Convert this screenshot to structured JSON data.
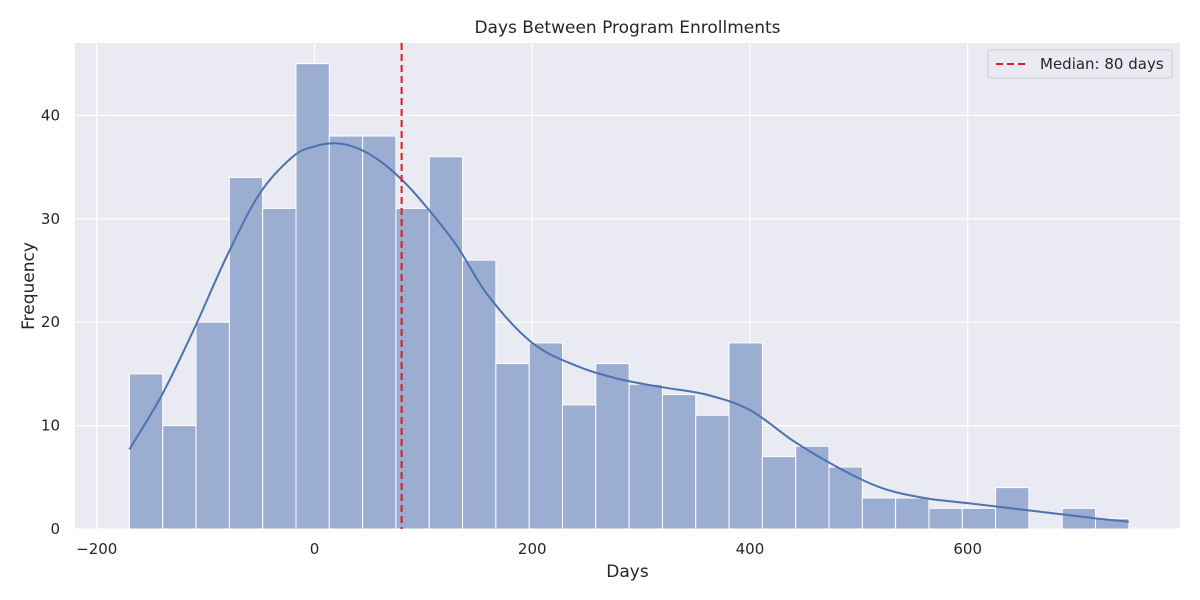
{
  "chart_data": {
    "type": "bar",
    "subtype": "histogram-with-kde",
    "title": "Days Between Program Enrollments",
    "xlabel": "Days",
    "ylabel": "Frequency",
    "xlim": [
      -220,
      795
    ],
    "ylim": [
      0,
      47
    ],
    "xticks": [
      -200,
      0,
      200,
      400,
      600
    ],
    "yticks": [
      0,
      10,
      20,
      30,
      40
    ],
    "grid": true,
    "colors": {
      "background": "#eaeaf2",
      "grid": "#ffffff",
      "bar": "#9badd0",
      "bar_edge": "#ffffff",
      "kde": "#4c72b0",
      "median": "#e41a1c"
    },
    "bin_start": -170,
    "bin_width": 30.6,
    "bins": [
      {
        "left": -170,
        "right": -139.4,
        "count": 15
      },
      {
        "left": -139.4,
        "right": -108.8,
        "count": 10
      },
      {
        "left": -108.8,
        "right": -78.2,
        "count": 20
      },
      {
        "left": -78.2,
        "right": -47.6,
        "count": 34
      },
      {
        "left": -47.6,
        "right": -17,
        "count": 31
      },
      {
        "left": -17,
        "right": 13.6,
        "count": 45
      },
      {
        "left": 13.6,
        "right": 44.2,
        "count": 38
      },
      {
        "left": 44.2,
        "right": 74.8,
        "count": 38
      },
      {
        "left": 74.8,
        "right": 105.4,
        "count": 31
      },
      {
        "left": 105.4,
        "right": 136,
        "count": 36
      },
      {
        "left": 136,
        "right": 166.6,
        "count": 26
      },
      {
        "left": 166.6,
        "right": 197.2,
        "count": 16
      },
      {
        "left": 197.2,
        "right": 227.8,
        "count": 18
      },
      {
        "left": 227.8,
        "right": 258.4,
        "count": 12
      },
      {
        "left": 258.4,
        "right": 289,
        "count": 16
      },
      {
        "left": 289,
        "right": 319.6,
        "count": 14
      },
      {
        "left": 319.6,
        "right": 350.2,
        "count": 13
      },
      {
        "left": 350.2,
        "right": 380.8,
        "count": 11
      },
      {
        "left": 380.8,
        "right": 411.4,
        "count": 18
      },
      {
        "left": 411.4,
        "right": 442,
        "count": 7
      },
      {
        "left": 442,
        "right": 472.6,
        "count": 8
      },
      {
        "left": 472.6,
        "right": 503.2,
        "count": 6
      },
      {
        "left": 503.2,
        "right": 533.8,
        "count": 3
      },
      {
        "left": 533.8,
        "right": 564.4,
        "count": 3
      },
      {
        "left": 564.4,
        "right": 595,
        "count": 2
      },
      {
        "left": 595,
        "right": 625.6,
        "count": 2
      },
      {
        "left": 625.6,
        "right": 656.2,
        "count": 4
      },
      {
        "left": 656.2,
        "right": 686.8,
        "count": 0
      },
      {
        "left": 686.8,
        "right": 717.4,
        "count": 2
      },
      {
        "left": 717.4,
        "right": 748,
        "count": 1
      }
    ],
    "kde": {
      "x": [
        -170,
        -140,
        -110,
        -80,
        -50,
        -20,
        0,
        20,
        40,
        60,
        80,
        100,
        130,
        160,
        200,
        240,
        280,
        320,
        360,
        400,
        440,
        480,
        520,
        560,
        600,
        640,
        680,
        720,
        748
      ],
      "y": [
        7.7,
        13,
        19.5,
        26.5,
        32.5,
        36,
        37,
        37.3,
        36.8,
        35.6,
        33.8,
        31.5,
        27.5,
        22.5,
        18,
        15.8,
        14.5,
        13.7,
        13,
        11.5,
        8.5,
        6,
        4,
        3,
        2.5,
        2,
        1.5,
        1,
        0.7
      ]
    },
    "median": {
      "value": 80,
      "label": "Median: 80 days"
    },
    "legend": {
      "position": "top-right",
      "entries": [
        "Median: 80 days"
      ]
    }
  }
}
